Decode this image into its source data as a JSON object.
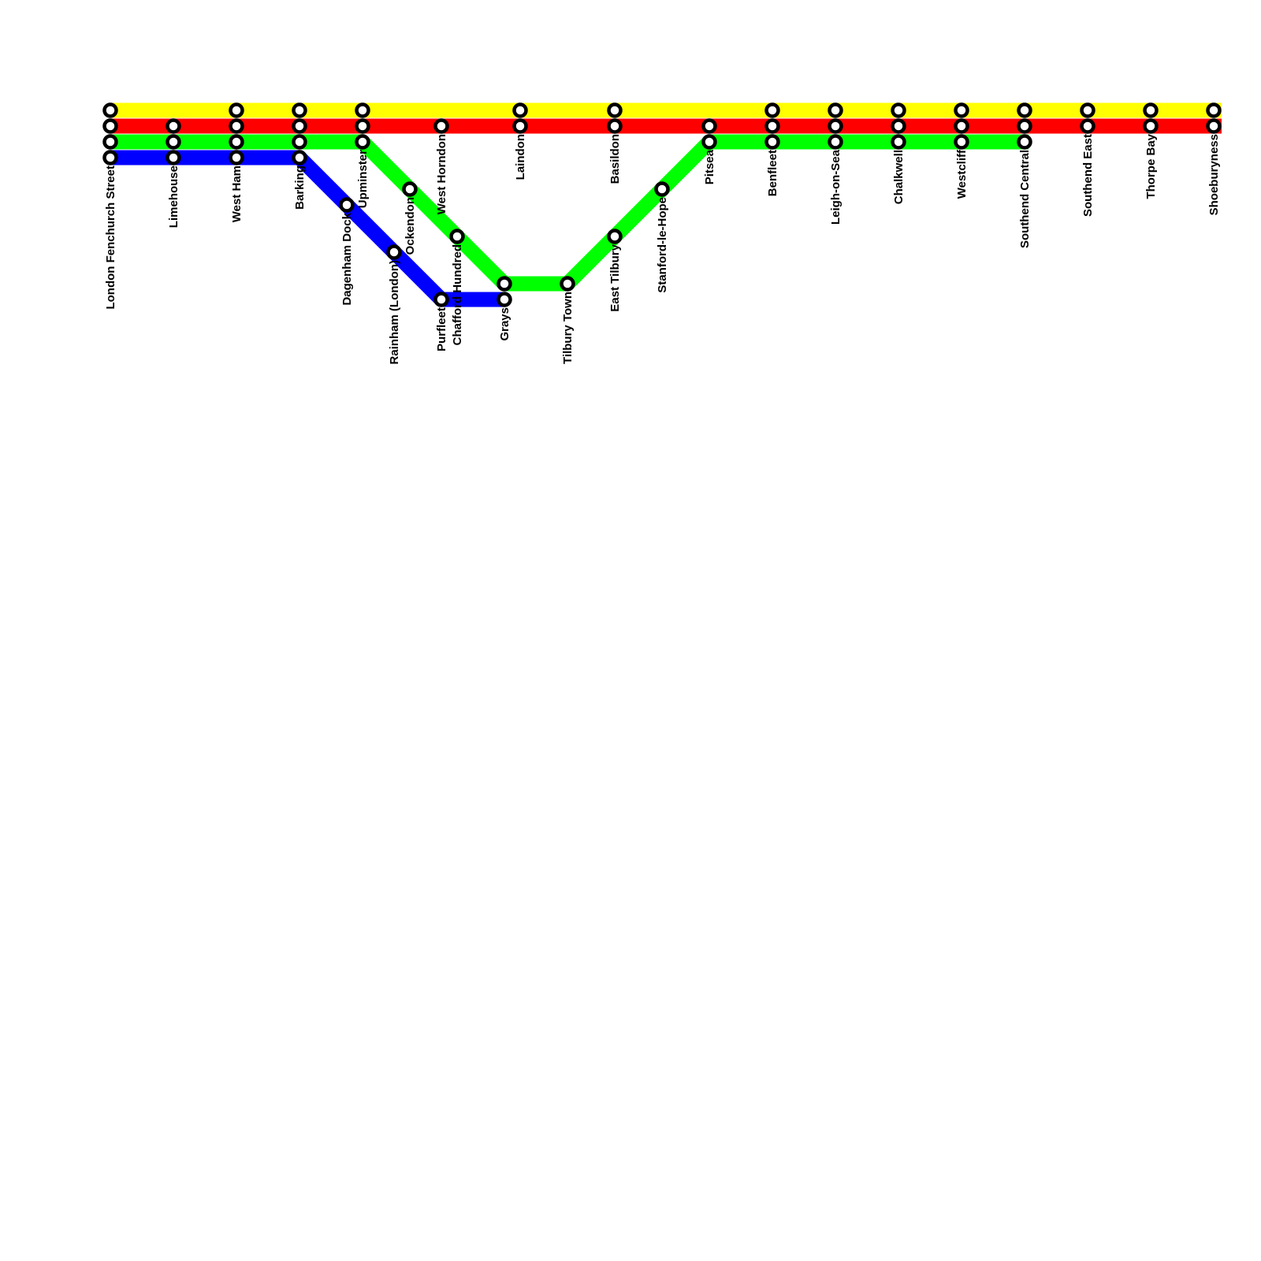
{
  "lines": [
    {
      "id": "yellow",
      "color": "#ffff00"
    },
    {
      "id": "red",
      "color": "#ff0000"
    },
    {
      "id": "green",
      "color": "#00ff00"
    },
    {
      "id": "blue",
      "color": "#0000ff"
    }
  ],
  "stations": [
    {
      "id": "london-fenchurch-street",
      "name": "London Fenchurch Street"
    },
    {
      "id": "limehouse",
      "name": "Limehouse"
    },
    {
      "id": "west-ham",
      "name": "West Ham"
    },
    {
      "id": "barking",
      "name": "Barking"
    },
    {
      "id": "dagenham-dock",
      "name": "Dagenham Dock"
    },
    {
      "id": "upminster",
      "name": "Upminster"
    },
    {
      "id": "rainham-london",
      "name": "Rainham (London)"
    },
    {
      "id": "ockendon",
      "name": "Ockendon"
    },
    {
      "id": "purfleet",
      "name": "Purfleet"
    },
    {
      "id": "west-horndon",
      "name": "West Horndon"
    },
    {
      "id": "chafford-hundred",
      "name": "Chafford Hundred"
    },
    {
      "id": "grays",
      "name": "Grays"
    },
    {
      "id": "laindon",
      "name": "Laindon"
    },
    {
      "id": "tilbury-town",
      "name": "Tilbury Town"
    },
    {
      "id": "east-tilbury",
      "name": "East Tilbury"
    },
    {
      "id": "basildon",
      "name": "Basildon"
    },
    {
      "id": "stanford-le-hope",
      "name": "Stanford-le-Hope"
    },
    {
      "id": "pitsea",
      "name": "Pitsea"
    },
    {
      "id": "benfleet",
      "name": "Benfleet"
    },
    {
      "id": "leigh-on-sea",
      "name": "Leigh-on-Sea"
    },
    {
      "id": "chalkwell",
      "name": "Chalkwell"
    },
    {
      "id": "westcliff",
      "name": "Westcliff"
    },
    {
      "id": "southend-central",
      "name": "Southend Central"
    },
    {
      "id": "southend-east",
      "name": "Southend East"
    },
    {
      "id": "thorpe-bay",
      "name": "Thorpe Bay"
    },
    {
      "id": "shoeburyness",
      "name": "Shoeburyness"
    }
  ]
}
